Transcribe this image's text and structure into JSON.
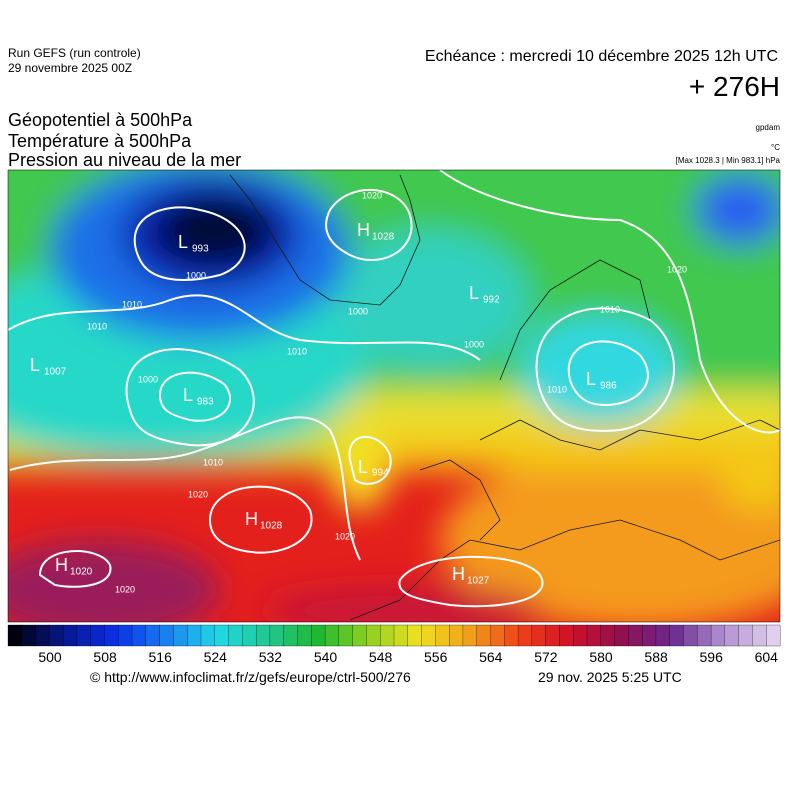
{
  "header": {
    "run": "Run GEFS (run controle)",
    "date": "29 novembre 2025 00Z",
    "echeance": "Echéance : mercredi 10 décembre 2025 12h UTC",
    "lead": "+ 276H"
  },
  "titles": [
    "Géopotentiel à 500hPa",
    "Température à 500hPa",
    "Pression au niveau de la mer"
  ],
  "units": [
    "gpdam",
    "°C",
    "[Max 1028.3 | Min 983.1] hPa"
  ],
  "isobar_labels": [
    1020,
    1000,
    1010,
    1010,
    1000,
    1010,
    1000,
    1010,
    1020,
    1020,
    1020,
    1020,
    1000,
    1010,
    1010
  ],
  "centers": [
    {
      "kind": "L",
      "value": 993
    },
    {
      "kind": "H",
      "value": 1028
    },
    {
      "kind": "L",
      "value": 992
    },
    {
      "kind": "L",
      "value": 1007
    },
    {
      "kind": "L",
      "value": 983
    },
    {
      "kind": "L",
      "value": 986
    },
    {
      "kind": "L",
      "value": 994
    },
    {
      "kind": "H",
      "value": 1028
    },
    {
      "kind": "H",
      "value": 1020
    },
    {
      "kind": "H",
      "value": 1027
    }
  ],
  "colorbar": {
    "labels": [
      500,
      508,
      516,
      524,
      532,
      540,
      548,
      556,
      564,
      572,
      580,
      588,
      596,
      604
    ],
    "colors": [
      "#000010",
      "#081890",
      "#0a30e8",
      "#1a80f0",
      "#20d8e8",
      "#20c890",
      "#20b830",
      "#90d020",
      "#f0e020",
      "#f0a018",
      "#f04018",
      "#d01028",
      "#901050",
      "#6a2890",
      "#b090d0",
      "#e0d0ec"
    ]
  },
  "footer": {
    "source": "© http://www.infoclimat.fr/z/gefs/europe/ctrl-500/276",
    "issued": "29 nov. 2025  5:25 UTC"
  }
}
